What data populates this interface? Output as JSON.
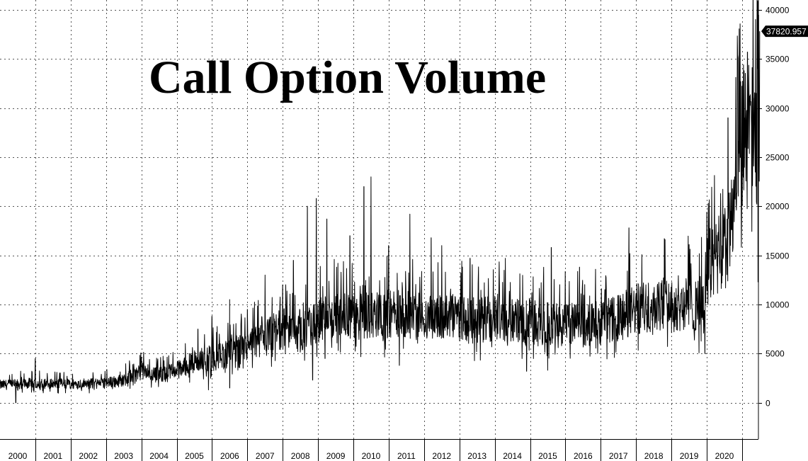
{
  "chart_data": {
    "type": "line",
    "title": "Call Option Volume",
    "xlabel": "",
    "ylabel": "",
    "x_range": [
      2000.0,
      2021.5
    ],
    "ylim": [
      -3700,
      41000
    ],
    "y_ticks": [
      0,
      5000,
      10000,
      15000,
      20000,
      25000,
      30000,
      35000,
      40000
    ],
    "x_tick_labels": [
      "2000",
      "2001",
      "2002",
      "2003",
      "2004",
      "2005",
      "2006",
      "2007",
      "2008",
      "2009",
      "2010",
      "2011",
      "2012",
      "2013",
      "2014",
      "2015",
      "2016",
      "2017",
      "2018",
      "2019",
      "2020"
    ],
    "grid": true,
    "y_axis_side": "right",
    "last_value_label": "37820.957",
    "series": [
      {
        "color": "#000000",
        "x": [
          2000.0,
          2001.0,
          2002.0,
          2003.0,
          2003.5,
          2004.0,
          2004.5,
          2005.0,
          2005.5,
          2006.0,
          2006.5,
          2007.0,
          2007.5,
          2008.0,
          2008.5,
          2009.0,
          2009.5,
          2010.0,
          2010.5,
          2011.0,
          2011.5,
          2012.0,
          2012.5,
          2013.0,
          2013.5,
          2014.0,
          2014.5,
          2015.0,
          2015.5,
          2016.0,
          2016.5,
          2017.0,
          2017.5,
          2018.0,
          2018.5,
          2019.0,
          2019.5,
          2019.9,
          2020.0,
          2020.2,
          2020.4,
          2020.6,
          2020.8,
          2021.0
        ],
        "y": [
          1800,
          2000,
          1900,
          2000,
          2300,
          3200,
          2800,
          3300,
          4200,
          4600,
          5100,
          5700,
          6600,
          7600,
          7000,
          8300,
          8700,
          8700,
          8900,
          9100,
          9100,
          8700,
          8600,
          8700,
          8400,
          8700,
          8400,
          8300,
          8100,
          8000,
          8000,
          8100,
          8600,
          9500,
          9900,
          10200,
          10000,
          10100,
          13500,
          14500,
          15000,
          16500,
          20000,
          27000
        ],
        "peaks": [
          {
            "x": 2001.0,
            "y": 4500
          },
          {
            "x": 2004.0,
            "y": 4600
          },
          {
            "x": 2005.6,
            "y": 7500
          },
          {
            "x": 2006.0,
            "y": 8800
          },
          {
            "x": 2006.5,
            "y": 10500
          },
          {
            "x": 2007.0,
            "y": 9500
          },
          {
            "x": 2007.5,
            "y": 13000
          },
          {
            "x": 2008.0,
            "y": 12000
          },
          {
            "x": 2008.3,
            "y": 14500
          },
          {
            "x": 2008.7,
            "y": 20000
          },
          {
            "x": 2008.95,
            "y": 20800
          },
          {
            "x": 2009.25,
            "y": 18700
          },
          {
            "x": 2009.9,
            "y": 17000
          },
          {
            "x": 2010.3,
            "y": 22000
          },
          {
            "x": 2010.5,
            "y": 23000
          },
          {
            "x": 2011.0,
            "y": 16000
          },
          {
            "x": 2011.6,
            "y": 19200
          },
          {
            "x": 2012.2,
            "y": 16800
          },
          {
            "x": 2012.5,
            "y": 16000
          },
          {
            "x": 2013.3,
            "y": 14700
          },
          {
            "x": 2014.3,
            "y": 14700
          },
          {
            "x": 2015.6,
            "y": 15800
          },
          {
            "x": 2016.4,
            "y": 13800
          },
          {
            "x": 2017.8,
            "y": 17800
          },
          {
            "x": 2018.8,
            "y": 16700
          },
          {
            "x": 2019.5,
            "y": 16100
          },
          {
            "x": 2020.0,
            "y": 19400
          },
          {
            "x": 2020.6,
            "y": 29000
          },
          {
            "x": 2020.95,
            "y": 25000
          },
          {
            "x": 2021.15,
            "y": 35700
          },
          {
            "x": 2021.35,
            "y": 31000
          },
          {
            "x": 2021.5,
            "y": 37820
          }
        ],
        "troughs": [
          {
            "x": 2000.45,
            "y": 0
          },
          {
            "x": 2005.9,
            "y": 1300
          },
          {
            "x": 2006.5,
            "y": 1500
          },
          {
            "x": 2008.85,
            "y": 2300
          },
          {
            "x": 2009.2,
            "y": 4500
          },
          {
            "x": 2011.3,
            "y": 3800
          },
          {
            "x": 2014.9,
            "y": 3200
          },
          {
            "x": 2015.5,
            "y": 3300
          },
          {
            "x": 2019.95,
            "y": 5000
          },
          {
            "x": 2021.45,
            "y": 12300
          }
        ]
      }
    ]
  }
}
